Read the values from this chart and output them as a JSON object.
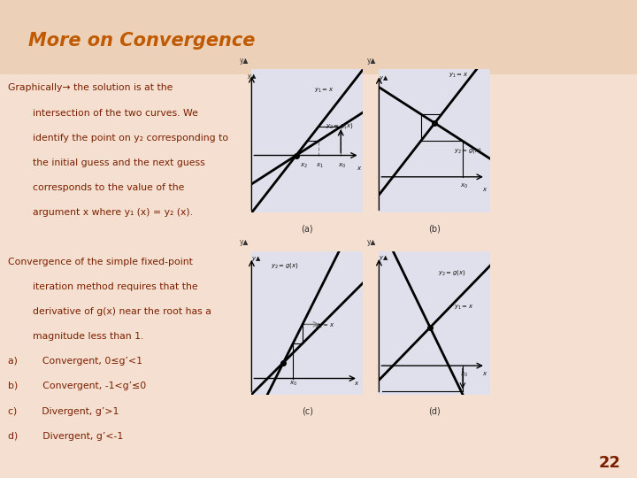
{
  "title": "More on Convergence",
  "title_color": "#C05A00",
  "slide_bg_color": "#F2D5C0",
  "slide_bg_color2": "#E8C4A8",
  "title_bar_color": "#EBC8AE",
  "text_color": "#7A2000",
  "body_lines": [
    [
      "Graphically→ the solution is at the",
      false
    ],
    [
      "        intersection of the two curves. We",
      false
    ],
    [
      "        identify the point on y₂ corresponding to",
      false
    ],
    [
      "        the initial guess and the next guess",
      false
    ],
    [
      "        corresponds to the value of the",
      false
    ],
    [
      "        argument x where y₁ (x) = y₂ (x).",
      false
    ],
    [
      "",
      false
    ],
    [
      "Convergence of the simple fixed-point",
      false
    ],
    [
      "        iteration method requires that the",
      false
    ],
    [
      "        derivative of g(x) near the root has a",
      false
    ],
    [
      "        magnitude less than 1.",
      false
    ],
    [
      "a)        Convergent, 0≤g’<1",
      false
    ],
    [
      "b)        Convergent, -1<g’≤0",
      false
    ],
    [
      "c)        Divergent, g’>1",
      false
    ],
    [
      "d)        Divergent, g’<-1",
      false
    ]
  ],
  "page_number": "22",
  "graph_bg_color": "#E0E0EC",
  "graph_label_color": "#333333"
}
